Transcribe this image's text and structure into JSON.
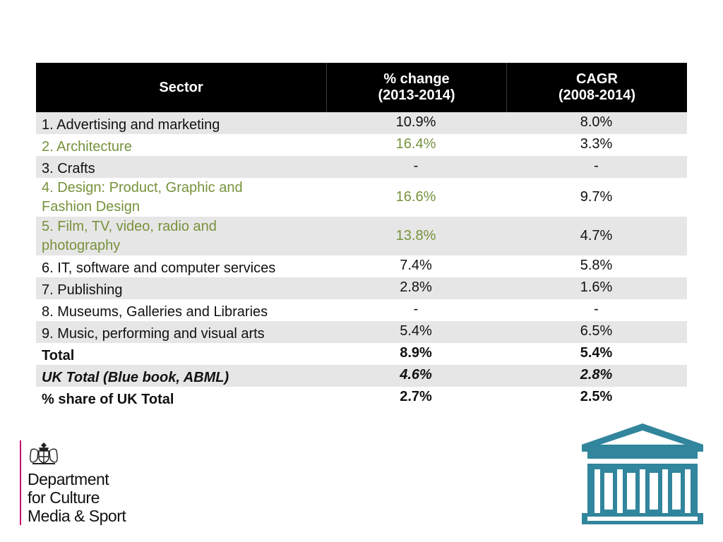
{
  "table": {
    "headers": {
      "sector": "Sector",
      "pct_change_line1": "% change",
      "pct_change_line2": "(2013-2014)",
      "cagr_line1": "CAGR",
      "cagr_line2": "(2008-2014)"
    },
    "rows": [
      {
        "sector": "1. Advertising and marketing",
        "pct_change": "10.9%",
        "cagr": "8.0%"
      },
      {
        "sector": "2. Architecture",
        "pct_change": "16.4%",
        "cagr": "3.3%"
      },
      {
        "sector": "3. Crafts",
        "pct_change": "-",
        "cagr": "-"
      },
      {
        "sector_line1": "4. Design: Product, Graphic and",
        "sector_line2": "Fashion Design",
        "pct_change": "16.6%",
        "cagr": "9.7%"
      },
      {
        "sector_line1": "5. Film, TV, video, radio and",
        "sector_line2": "photography",
        "pct_change": "13.8%",
        "cagr": "4.7%"
      },
      {
        "sector": "6. IT, software and computer services",
        "pct_change": "7.4%",
        "cagr": "5.8%"
      },
      {
        "sector": "7. Publishing",
        "pct_change": "2.8%",
        "cagr": "1.6%"
      },
      {
        "sector": "8. Museums, Galleries and Libraries",
        "pct_change": "-",
        "cagr": "-"
      },
      {
        "sector": "9. Music, performing and visual arts",
        "pct_change": "5.4%",
        "cagr": "6.5%"
      },
      {
        "sector": "Total",
        "pct_change": "8.9%",
        "cagr": "5.4%"
      },
      {
        "sector": "UK Total (Blue book, ABML)",
        "pct_change": "4.6%",
        "cagr": "2.8%"
      },
      {
        "sector": "% share of UK Total",
        "pct_change": "2.7%",
        "cagr": "2.5%"
      }
    ]
  },
  "logo": {
    "line1": "Department",
    "line2": "for Culture",
    "line3": "Media & Sport"
  },
  "colors": {
    "header_bg": "#000000",
    "row_shade": "#e7e6e6",
    "highlight_text": "#76923c",
    "logo_bar": "#c4006e",
    "temple_icon": "#31859c"
  },
  "icons": {
    "crest": "royal-coat-of-arms-icon",
    "temple": "museum-building-icon"
  }
}
